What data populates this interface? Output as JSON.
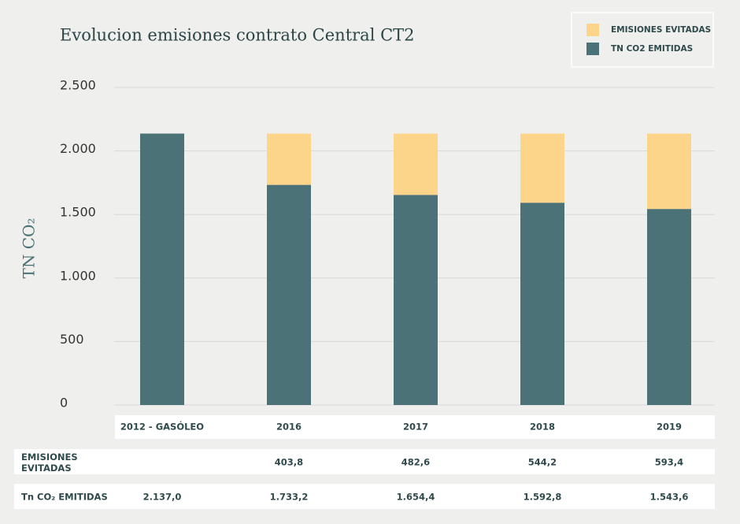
{
  "chart_data": {
    "type": "stacked-bar",
    "title": "Evolucion emisiones contrato Central CT2",
    "y_label": "TN CO₂",
    "categories": [
      "2012 - GASÓLEO",
      "2016",
      "2017",
      "2018",
      "2019"
    ],
    "series": [
      {
        "name": "TN CO2 EMITIDAS",
        "color": "#4b7276",
        "values": [
          2137.0,
          1733.2,
          1654.4,
          1592.8,
          1543.6
        ],
        "value_labels": [
          "2.137,0",
          "1.733,2",
          "1.654,4",
          "1.592,8",
          "1.543,6"
        ]
      },
      {
        "name": "EMISIONES EVITADAS",
        "color": "#fdd58a",
        "values": [
          null,
          403.8,
          482.6,
          544.2,
          593.4
        ],
        "value_labels": [
          null,
          "403,8",
          "482,6",
          "544,2",
          "593,4"
        ]
      }
    ],
    "table_row_labels": [
      "EMISIONES EVITADAS",
      "Tn CO₂ EMITIDAS"
    ],
    "ylim": [
      0,
      2500
    ],
    "yticks": [
      0,
      500,
      {
        "value": 1000,
        "label": "1.000"
      },
      {
        "value": 1500,
        "label": "1.500"
      },
      {
        "value": 2000,
        "label": "2.000"
      },
      {
        "value": 2500,
        "label": "2.500"
      }
    ],
    "grid": true,
    "legend": "top-right"
  }
}
